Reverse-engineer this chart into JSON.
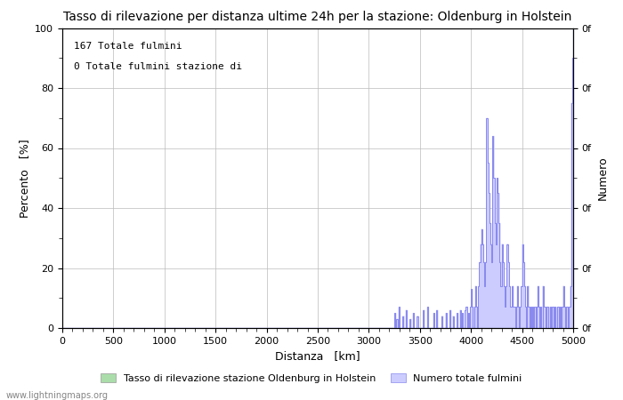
{
  "title": "Tasso di rilevazione per distanza ultime 24h per la stazione: Oldenburg in Holstein",
  "xlabel": "Distanza   [km]",
  "ylabel_left": "Percento   [%]",
  "ylabel_right": "Numero",
  "annotation_line1": "167 Totale fulmini",
  "annotation_line2": "0 Totale fulmini stazione di",
  "legend_label1": "Tasso di rilevazione stazione Oldenburg in Holstein",
  "legend_label2": "Numero totale fulmini",
  "xlim": [
    0,
    5000
  ],
  "ylim": [
    0,
    100
  ],
  "xticks": [
    0,
    500,
    1000,
    1500,
    2000,
    2500,
    3000,
    3500,
    4000,
    4500,
    5000
  ],
  "yticks_left": [
    0,
    20,
    40,
    60,
    80,
    100
  ],
  "watermark": "www.lightningmaps.org",
  "background_color": "#ffffff",
  "plot_bg_color": "#ffffff",
  "line_color": "#8888ee",
  "fill_color": "#ccccff",
  "grid_color": "#bbbbbb",
  "line_color_green": "#aaddaa",
  "right_axis_yticks": [
    0,
    20,
    40,
    60,
    80,
    100
  ],
  "right_axis_ylabels": [
    "0f",
    "0f",
    "0f",
    "0f",
    "0f",
    "0f"
  ]
}
